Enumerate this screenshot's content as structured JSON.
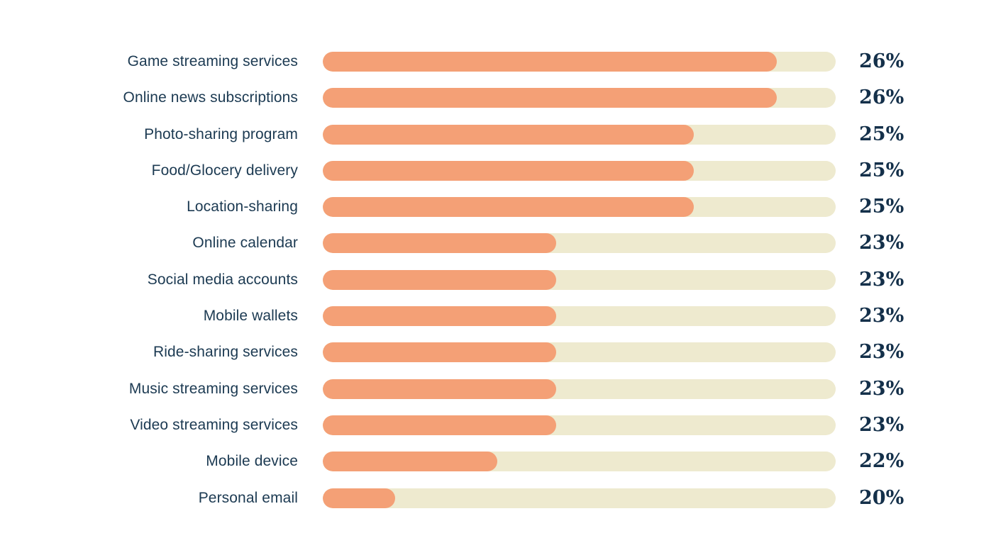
{
  "chart_data": {
    "type": "bar",
    "orientation": "horizontal",
    "title": "",
    "xlabel": "",
    "ylabel": "",
    "legend": false,
    "grid": false,
    "categories": [
      "Game streaming services",
      "Online news subscriptions",
      "Photo-sharing program",
      "Food/Glocery delivery",
      "Location-sharing",
      "Online calendar",
      "Social media accounts",
      "Mobile wallets",
      "Ride-sharing services",
      "Music streaming services",
      "Video streaming services",
      "Mobile device",
      "Personal email"
    ],
    "values": [
      26,
      26,
      25,
      25,
      25,
      23,
      23,
      23,
      23,
      23,
      23,
      22,
      20
    ],
    "value_labels": [
      "26%",
      "26%",
      "25%",
      "25%",
      "25%",
      "23%",
      "23%",
      "23%",
      "23%",
      "23%",
      "23%",
      "22%",
      "20%"
    ],
    "bar_fill_fractions": [
      0.885,
      0.885,
      0.723,
      0.723,
      0.723,
      0.455,
      0.455,
      0.455,
      0.455,
      0.455,
      0.455,
      0.34,
      0.141
    ],
    "colors": {
      "bar_fill": "#F4A076",
      "bar_track": "#EEEACF",
      "category_text": "#1C3A52",
      "value_text": "#14304A",
      "background": "#FFFFFF"
    }
  }
}
